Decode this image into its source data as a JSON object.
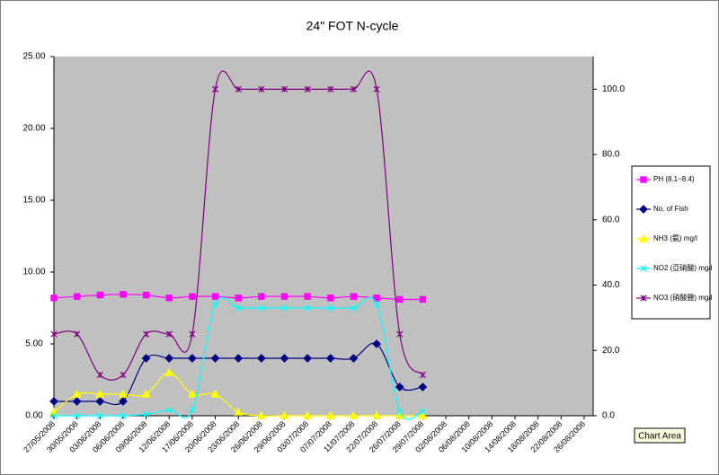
{
  "chart_data": {
    "type": "line",
    "title": "24\" FOT N-cycle",
    "categories": [
      "27/05/2008",
      "30/05/2008",
      "03/06/2008",
      "06/06/2008",
      "09/06/2008",
      "12/06/2008",
      "17/06/2008",
      "20/06/2008",
      "23/06/2008",
      "26/06/2008",
      "29/06/2008",
      "03/07/2008",
      "07/07/2008",
      "11/07/2008",
      "22/07/2008",
      "26/07/2008",
      "29/07/2008",
      "02/08/2008",
      "06/08/2008",
      "10/08/2008",
      "14/08/2008",
      "18/08/2008",
      "22/08/2008",
      "26/08/2008"
    ],
    "series": [
      {
        "name": "PH (8.1~8.4)",
        "color": "#ff00ff",
        "marker": "square",
        "values": [
          8.2,
          8.3,
          8.4,
          8.45,
          8.4,
          8.2,
          8.3,
          8.3,
          8.2,
          8.3,
          8.3,
          8.3,
          8.2,
          8.3,
          8.2,
          8.1,
          8.1,
          null,
          null,
          null,
          null,
          null,
          null,
          null
        ]
      },
      {
        "name": "No. of Fish",
        "color": "#000080",
        "marker": "diamond",
        "values": [
          1,
          1,
          1,
          1,
          4,
          4,
          4,
          4,
          4,
          4,
          4,
          4,
          4,
          4,
          5,
          2,
          2,
          null,
          null,
          null,
          null,
          null,
          null,
          null
        ]
      },
      {
        "name": "NH3 (氨) mg/l",
        "color": "#ffff00",
        "marker": "triangle",
        "values": [
          0.25,
          1.5,
          1.5,
          1.5,
          1.5,
          3,
          1.5,
          1.5,
          0.25,
          0,
          0,
          0,
          0,
          0,
          0,
          0,
          0,
          null,
          null,
          null,
          null,
          null,
          null,
          null
        ]
      },
      {
        "name": "NO2 (亞硝酸) mg/l",
        "color": "#00ffff",
        "marker": "cross",
        "values": [
          0,
          0,
          0,
          0,
          0.1,
          0.4,
          0.4,
          7.75,
          7.5,
          7.5,
          7.5,
          7.5,
          7.5,
          7.5,
          7.75,
          0.3,
          0.3,
          null,
          null,
          null,
          null,
          null,
          null,
          null
        ]
      },
      {
        "name": "NO3 (硝酸鹽) mg/l",
        "color": "#800080",
        "marker": "star",
        "axis": "y2",
        "values": [
          25,
          25,
          12.5,
          12.5,
          25,
          25,
          25,
          100,
          100,
          100,
          100,
          100,
          100,
          100,
          100,
          25,
          12.5,
          null,
          null,
          null,
          null,
          null,
          null,
          null
        ]
      }
    ],
    "ylim": [
      0,
      25
    ],
    "yticks": [
      {
        "value": 0,
        "label": "0.00"
      },
      {
        "value": 5,
        "label": "5.00"
      },
      {
        "value": 10,
        "label": "10.00"
      },
      {
        "value": 15,
        "label": "15.00"
      },
      {
        "value": 20,
        "label": "20.00"
      },
      {
        "value": 25,
        "label": "25.00"
      }
    ],
    "y2lim": [
      0,
      110
    ],
    "y2ticks": [
      {
        "value": 0,
        "label": "0.0"
      },
      {
        "value": 20,
        "label": "20.0"
      },
      {
        "value": 40,
        "label": "40.0"
      },
      {
        "value": 60,
        "label": "60.0"
      },
      {
        "value": 80,
        "label": "80.0"
      },
      {
        "value": 100,
        "label": "100.0"
      }
    ],
    "legend": "right",
    "tooltip": "Chart Area"
  }
}
